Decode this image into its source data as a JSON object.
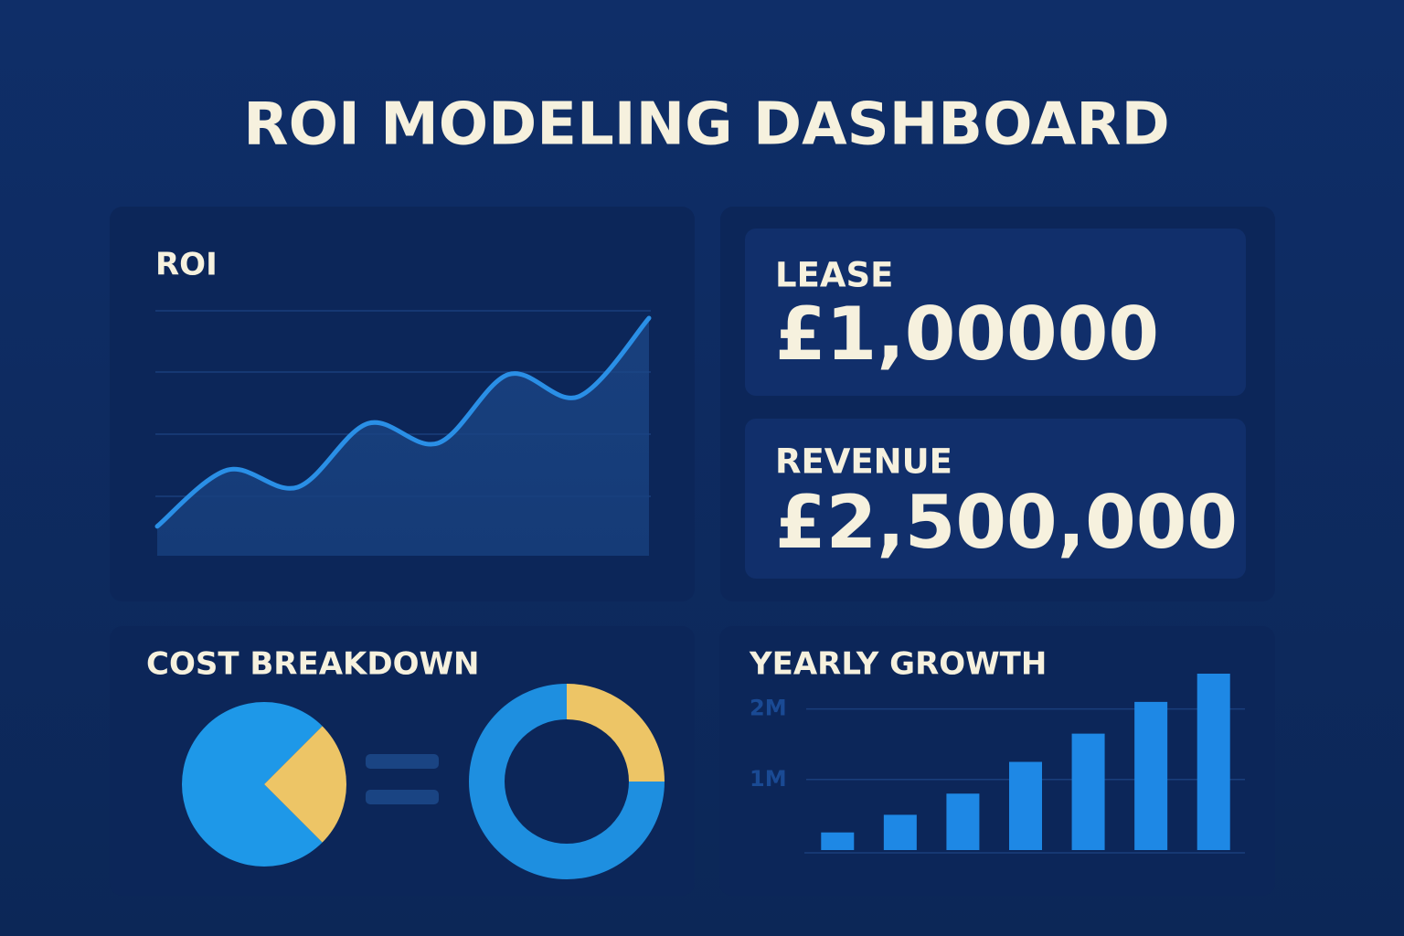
{
  "header": {
    "title": "ROI MODELING DASHBOARD"
  },
  "kpis": [
    {
      "label": "LEASE",
      "value": "£1,00000"
    },
    {
      "label": "REVENUE",
      "value": "£2,500,000"
    }
  ],
  "chart_data": [
    {
      "type": "line",
      "title": "ROI",
      "values": [
        12,
        35,
        28,
        54,
        46,
        74,
        65,
        97
      ],
      "ylim": [
        0,
        100
      ],
      "color": "#2a8fe6"
    },
    {
      "type": "pie",
      "title": "COST BREAKDOWN",
      "values": [
        75,
        25
      ],
      "colors": [
        "#1e98e8",
        "#edc566"
      ]
    },
    {
      "type": "donut",
      "values": [
        75,
        25
      ],
      "colors": [
        "#1e8fe0",
        "#edc566"
      ]
    },
    {
      "type": "bar",
      "title": "YEARLY GROWTH",
      "values": [
        250000,
        500000,
        800000,
        1250000,
        1650000,
        2100000,
        2500000
      ],
      "color": "#1e88e5",
      "ylim": [
        0,
        2500000
      ],
      "yticks": [
        {
          "value": 1000000,
          "label": "1M"
        },
        {
          "value": 2000000,
          "label": "2M"
        }
      ],
      "grid": true
    }
  ]
}
